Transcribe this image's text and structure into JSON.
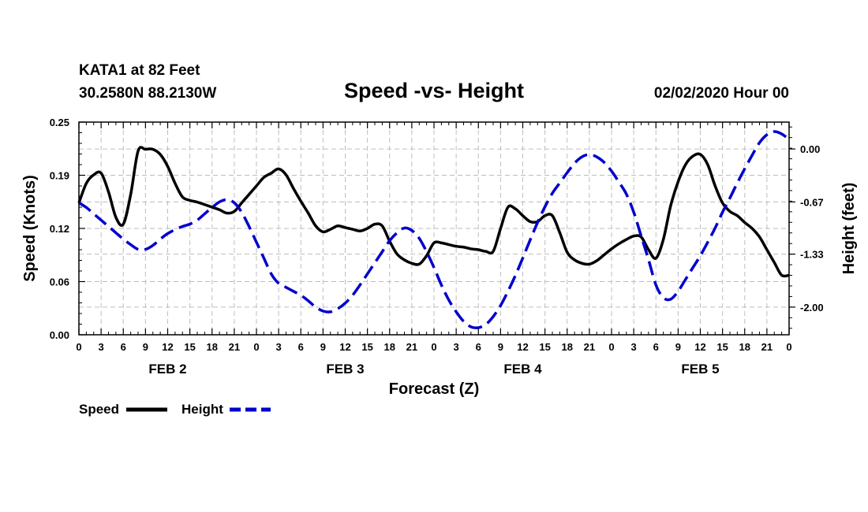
{
  "header": {
    "station": "KATA1 at 82 Feet",
    "coords": "30.2580N 88.2130W",
    "datetime": "02/02/2020 Hour 00"
  },
  "chart_data": {
    "type": "line",
    "title": "Speed -vs- Height",
    "xlabel": "Forecast (Z)",
    "ylabel": "Speed (Knots)",
    "y2label": "Height (feet)",
    "ylim": [
      0,
      0.25
    ],
    "y2lim": [
      -2.35,
      0.34
    ],
    "grid": true,
    "legend_position": "bottom-left",
    "x_range_hours": [
      0,
      96
    ],
    "x_tick_labels": [
      "0",
      "3",
      "6",
      "9",
      "12",
      "15",
      "18",
      "21",
      "0",
      "3",
      "6",
      "9",
      "12",
      "15",
      "18",
      "21",
      "0",
      "3",
      "6",
      "9",
      "12",
      "15",
      "18",
      "21",
      "0",
      "3",
      "6",
      "9",
      "12",
      "15",
      "18",
      "21",
      "0"
    ],
    "day_labels": [
      {
        "label": "FEB 2",
        "hour": 12
      },
      {
        "label": "FEB 3",
        "hour": 36
      },
      {
        "label": "FEB 4",
        "hour": 60
      },
      {
        "label": "FEB 5",
        "hour": 84
      }
    ],
    "y_ticks": [
      "0.00",
      "0.06",
      "0.12",
      "0.19",
      "0.25"
    ],
    "y_tick_values": [
      0,
      0.0625,
      0.125,
      0.1875,
      0.25
    ],
    "y2_ticks": [
      "-2.00",
      "-1.33",
      "-0.67",
      "0.00"
    ],
    "y2_tick_values": [
      -2.0,
      -1.33,
      -0.67,
      0.0
    ],
    "series": [
      {
        "name": "Speed",
        "axis": "left",
        "color": "#000000",
        "dash": "solid",
        "x": [
          0,
          1,
          2,
          3,
          4,
          5,
          6,
          7,
          8,
          9,
          10,
          11,
          12,
          13,
          14,
          15,
          16,
          17,
          18,
          19,
          20,
          21,
          22,
          23,
          24,
          25,
          26,
          27,
          28,
          29,
          30,
          31,
          32,
          33,
          34,
          35,
          36,
          37,
          38,
          39,
          40,
          41,
          42,
          43,
          44,
          45,
          46,
          47,
          48,
          49,
          50,
          51,
          52,
          53,
          54,
          55,
          56,
          57,
          58,
          59,
          60,
          61,
          62,
          63,
          64,
          65,
          66,
          67,
          68,
          69,
          70,
          71,
          72,
          73,
          74,
          75,
          76,
          77,
          78,
          79,
          80,
          81,
          82,
          83,
          84,
          85,
          86,
          87,
          88,
          89,
          90,
          91,
          92,
          93,
          94,
          95,
          96
        ],
        "values": [
          0.155,
          0.178,
          0.188,
          0.19,
          0.168,
          0.138,
          0.13,
          0.165,
          0.216,
          0.218,
          0.218,
          0.212,
          0.198,
          0.178,
          0.162,
          0.158,
          0.156,
          0.153,
          0.15,
          0.147,
          0.143,
          0.145,
          0.155,
          0.165,
          0.175,
          0.185,
          0.19,
          0.195,
          0.188,
          0.172,
          0.157,
          0.143,
          0.128,
          0.121,
          0.124,
          0.128,
          0.126,
          0.124,
          0.122,
          0.125,
          0.13,
          0.128,
          0.11,
          0.095,
          0.088,
          0.084,
          0.083,
          0.093,
          0.108,
          0.108,
          0.106,
          0.104,
          0.103,
          0.101,
          0.1,
          0.098,
          0.098,
          0.125,
          0.15,
          0.148,
          0.14,
          0.133,
          0.133,
          0.14,
          0.14,
          0.12,
          0.097,
          0.088,
          0.084,
          0.083,
          0.087,
          0.094,
          0.101,
          0.107,
          0.112,
          0.116,
          0.115,
          0.1,
          0.09,
          0.112,
          0.152,
          0.18,
          0.2,
          0.21,
          0.212,
          0.2,
          0.175,
          0.155,
          0.145,
          0.14,
          0.132,
          0.125,
          0.115,
          0.1,
          0.085,
          0.07,
          0.07
        ]
      },
      {
        "name": "Height",
        "axis": "right",
        "color": "#0000cc",
        "dash": "dashed",
        "x": [
          0,
          1,
          2,
          3,
          4,
          5,
          6,
          7,
          8,
          9,
          10,
          11,
          12,
          13,
          14,
          15,
          16,
          17,
          18,
          19,
          20,
          21,
          22,
          23,
          24,
          25,
          26,
          27,
          28,
          29,
          30,
          31,
          32,
          33,
          34,
          35,
          36,
          37,
          38,
          39,
          40,
          41,
          42,
          43,
          44,
          45,
          46,
          47,
          48,
          49,
          50,
          51,
          52,
          53,
          54,
          55,
          56,
          57,
          58,
          59,
          60,
          61,
          62,
          63,
          64,
          65,
          66,
          67,
          68,
          69,
          70,
          71,
          72,
          73,
          74,
          75,
          76,
          77,
          78,
          79,
          80,
          81,
          82,
          83,
          84,
          85,
          86,
          87,
          88,
          89,
          90,
          91,
          92,
          93,
          94,
          95,
          96
        ],
        "values": [
          -0.68,
          -0.74,
          -0.82,
          -0.9,
          -0.98,
          -1.06,
          -1.14,
          -1.21,
          -1.27,
          -1.27,
          -1.22,
          -1.14,
          -1.07,
          -1.02,
          -0.98,
          -0.95,
          -0.9,
          -0.82,
          -0.74,
          -0.67,
          -0.64,
          -0.68,
          -0.8,
          -0.98,
          -1.18,
          -1.38,
          -1.58,
          -1.7,
          -1.75,
          -1.8,
          -1.85,
          -1.92,
          -2.0,
          -2.05,
          -2.06,
          -2.02,
          -1.95,
          -1.85,
          -1.72,
          -1.58,
          -1.44,
          -1.3,
          -1.16,
          -1.06,
          -1.0,
          -1.03,
          -1.13,
          -1.3,
          -1.5,
          -1.72,
          -1.91,
          -2.06,
          -2.18,
          -2.25,
          -2.26,
          -2.22,
          -2.12,
          -1.98,
          -1.8,
          -1.6,
          -1.38,
          -1.15,
          -0.93,
          -0.73,
          -0.56,
          -0.43,
          -0.3,
          -0.18,
          -0.1,
          -0.07,
          -0.1,
          -0.17,
          -0.28,
          -0.42,
          -0.57,
          -0.8,
          -1.1,
          -1.4,
          -1.72,
          -1.88,
          -1.9,
          -1.8,
          -1.65,
          -1.5,
          -1.35,
          -1.18,
          -1.0,
          -0.8,
          -0.62,
          -0.43,
          -0.25,
          -0.08,
          0.08,
          0.18,
          0.22,
          0.19,
          0.12
        ]
      }
    ]
  }
}
